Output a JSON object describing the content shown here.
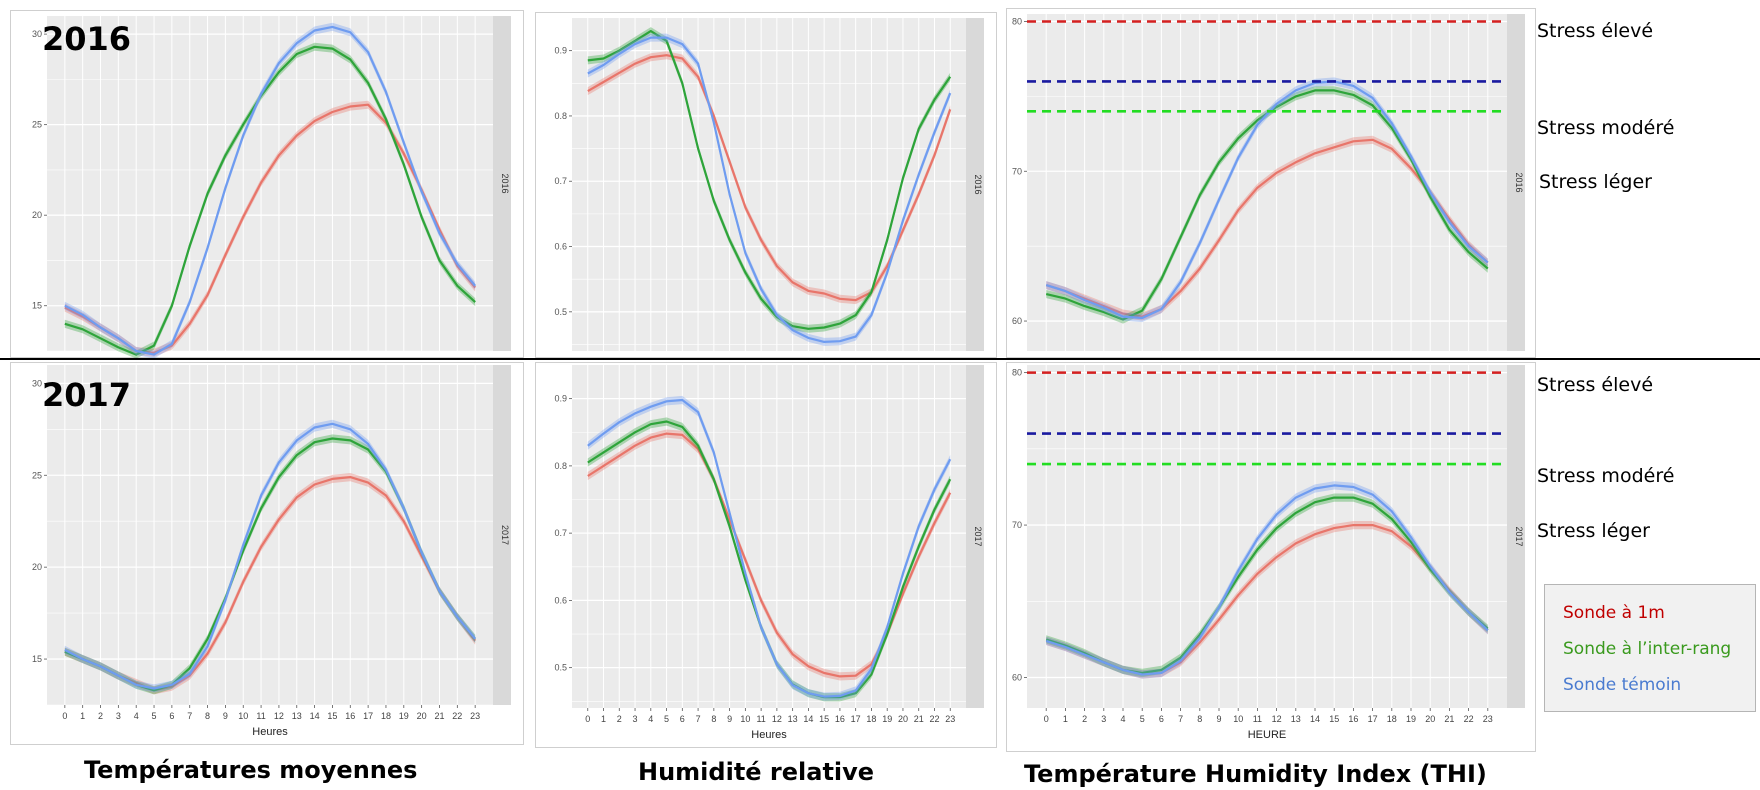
{
  "labels": {
    "year_2016": "2016",
    "year_2017": "2017",
    "col1_title": "Températures moyennes",
    "col2_title": "Humidité relative",
    "col3_title": "Température Humidity Index (THI)",
    "stress_high": "Stress élevé",
    "stress_moderate": "Stress modéré",
    "stress_light": "Stress léger"
  },
  "legend": [
    {
      "label": "Sonde à 1m",
      "color": "#c00000"
    },
    {
      "label": "Sonde à l’inter-rang",
      "color": "#3a9a1e"
    },
    {
      "label": "Sonde témoin",
      "color": "#4a7bd0"
    }
  ],
  "colors": {
    "panel_bg": "#ebebeb",
    "grid": "#ffffff",
    "strip": "#d9d9d9",
    "series_red": "#e8756a",
    "series_green": "#2ea43a",
    "series_blue": "#6f9cf0",
    "stress_high": "#d42020",
    "stress_moderate": "#1a1aa0",
    "stress_light": "#22dd22"
  },
  "chart_data": [
    {
      "type": "line",
      "year": "2016",
      "strip": "2016",
      "xlabel": "",
      "x": [
        0,
        1,
        2,
        3,
        4,
        5,
        6,
        7,
        8,
        9,
        10,
        11,
        12,
        13,
        14,
        15,
        16,
        17,
        18,
        19,
        20,
        21,
        22,
        23
      ],
      "xlim": [
        0,
        23
      ],
      "ylim": [
        12.5,
        31
      ],
      "yticks": [
        15,
        20,
        25,
        30
      ],
      "ytick_labels": [
        "15",
        "20",
        "25",
        "30"
      ],
      "show_x_ticks": false,
      "series": [
        {
          "color": "#e8756a",
          "values": [
            14.9,
            14.4,
            13.8,
            13.2,
            12.5,
            12.4,
            12.8,
            14.0,
            15.6,
            17.8,
            19.9,
            21.8,
            23.3,
            24.4,
            25.2,
            25.7,
            26.0,
            26.1,
            25.1,
            23.4,
            21.4,
            19.2,
            17.2,
            16.0
          ]
        },
        {
          "color": "#2ea43a",
          "values": [
            14.0,
            13.7,
            13.2,
            12.7,
            12.3,
            12.8,
            15.0,
            18.3,
            21.2,
            23.3,
            25.0,
            26.6,
            27.9,
            28.9,
            29.3,
            29.2,
            28.6,
            27.3,
            25.3,
            22.8,
            19.9,
            17.5,
            16.1,
            15.2
          ]
        },
        {
          "color": "#6f9cf0",
          "values": [
            15.0,
            14.5,
            13.8,
            13.2,
            12.5,
            12.3,
            12.9,
            15.2,
            18.2,
            21.5,
            24.4,
            26.7,
            28.4,
            29.5,
            30.2,
            30.4,
            30.1,
            29.0,
            26.8,
            24.0,
            21.3,
            19.0,
            17.3,
            16.1
          ]
        }
      ]
    },
    {
      "type": "line",
      "year": "2016",
      "strip": "2016",
      "xlabel": "",
      "x": [
        0,
        1,
        2,
        3,
        4,
        5,
        6,
        7,
        8,
        9,
        10,
        11,
        12,
        13,
        14,
        15,
        16,
        17,
        18,
        19,
        20,
        21,
        22,
        23
      ],
      "xlim": [
        0,
        23
      ],
      "ylim": [
        0.44,
        0.95
      ],
      "yticks": [
        0.5,
        0.6,
        0.7,
        0.8,
        0.9
      ],
      "ytick_labels": [
        "0.5",
        "0.6",
        "0.7",
        "0.8",
        "0.9"
      ],
      "show_x_ticks": false,
      "series": [
        {
          "color": "#e8756a",
          "values": [
            0.838,
            0.852,
            0.866,
            0.88,
            0.89,
            0.893,
            0.888,
            0.86,
            0.8,
            0.73,
            0.66,
            0.61,
            0.57,
            0.545,
            0.532,
            0.528,
            0.52,
            0.518,
            0.53,
            0.57,
            0.625,
            0.68,
            0.74,
            0.81
          ]
        },
        {
          "color": "#2ea43a",
          "values": [
            0.885,
            0.888,
            0.9,
            0.915,
            0.93,
            0.915,
            0.85,
            0.75,
            0.67,
            0.61,
            0.56,
            0.52,
            0.492,
            0.478,
            0.474,
            0.476,
            0.482,
            0.495,
            0.53,
            0.61,
            0.705,
            0.78,
            0.825,
            0.86
          ]
        },
        {
          "color": "#6f9cf0",
          "values": [
            0.865,
            0.878,
            0.895,
            0.91,
            0.92,
            0.92,
            0.91,
            0.88,
            0.79,
            0.68,
            0.59,
            0.535,
            0.495,
            0.472,
            0.46,
            0.454,
            0.455,
            0.462,
            0.495,
            0.56,
            0.64,
            0.71,
            0.775,
            0.835
          ]
        }
      ]
    },
    {
      "type": "line",
      "year": "2016",
      "strip": "2016",
      "xlabel": "",
      "x": [
        0,
        1,
        2,
        3,
        4,
        5,
        6,
        7,
        8,
        9,
        10,
        11,
        12,
        13,
        14,
        15,
        16,
        17,
        18,
        19,
        20,
        21,
        22,
        23
      ],
      "xlim": [
        0,
        23
      ],
      "ylim": [
        58,
        80.5
      ],
      "yticks": [
        60,
        70,
        80
      ],
      "ytick_labels": [
        "60",
        "70",
        "80"
      ],
      "show_x_ticks": false,
      "hlines": [
        {
          "y": 80.0,
          "color": "#d42020",
          "label_key": "stress_high"
        },
        {
          "y": 76.0,
          "color": "#1a1aa0",
          "label_key": "stress_moderate"
        },
        {
          "y": 74.0,
          "color": "#22dd22",
          "label_key": "stress_light"
        }
      ],
      "series": [
        {
          "color": "#e8756a",
          "values": [
            62.4,
            62.0,
            61.5,
            61.0,
            60.5,
            60.3,
            60.8,
            62.0,
            63.5,
            65.4,
            67.4,
            68.9,
            69.9,
            70.6,
            71.2,
            71.6,
            72.0,
            72.1,
            71.5,
            70.2,
            68.6,
            66.8,
            65.1,
            63.9
          ]
        },
        {
          "color": "#2ea43a",
          "values": [
            61.8,
            61.5,
            61.0,
            60.6,
            60.1,
            60.7,
            62.8,
            65.6,
            68.4,
            70.6,
            72.2,
            73.4,
            74.3,
            75.0,
            75.4,
            75.4,
            75.1,
            74.4,
            72.9,
            70.8,
            68.3,
            66.1,
            64.6,
            63.5
          ]
        },
        {
          "color": "#6f9cf0",
          "values": [
            62.4,
            62.0,
            61.4,
            60.9,
            60.3,
            60.2,
            60.8,
            62.6,
            65.2,
            68.1,
            70.9,
            73.1,
            74.5,
            75.4,
            75.9,
            76.0,
            75.7,
            74.9,
            73.2,
            71.0,
            68.6,
            66.6,
            65.0,
            63.9
          ]
        }
      ]
    },
    {
      "type": "line",
      "year": "2017",
      "strip": "2017",
      "xlabel": "Heures",
      "x": [
        0,
        1,
        2,
        3,
        4,
        5,
        6,
        7,
        8,
        9,
        10,
        11,
        12,
        13,
        14,
        15,
        16,
        17,
        18,
        19,
        20,
        21,
        22,
        23
      ],
      "xlim": [
        0,
        23
      ],
      "ylim": [
        12.5,
        31
      ],
      "yticks": [
        15,
        20,
        25,
        30
      ],
      "ytick_labels": [
        "15",
        "20",
        "25",
        "30"
      ],
      "show_x_ticks": true,
      "series": [
        {
          "color": "#e8756a",
          "values": [
            15.4,
            15.0,
            14.6,
            14.1,
            13.7,
            13.3,
            13.5,
            14.1,
            15.3,
            17.0,
            19.2,
            21.1,
            22.6,
            23.8,
            24.5,
            24.8,
            24.9,
            24.6,
            23.9,
            22.5,
            20.6,
            18.7,
            17.3,
            16.0
          ]
        },
        {
          "color": "#2ea43a",
          "values": [
            15.4,
            15.0,
            14.6,
            14.1,
            13.6,
            13.3,
            13.6,
            14.5,
            16.1,
            18.3,
            20.9,
            23.2,
            24.9,
            26.1,
            26.8,
            27.0,
            26.9,
            26.4,
            25.2,
            23.2,
            20.8,
            18.7,
            17.3,
            16.1
          ]
        },
        {
          "color": "#6f9cf0",
          "values": [
            15.5,
            15.0,
            14.6,
            14.1,
            13.6,
            13.4,
            13.6,
            14.2,
            15.7,
            18.2,
            21.2,
            23.9,
            25.7,
            26.9,
            27.6,
            27.8,
            27.5,
            26.7,
            25.3,
            23.2,
            20.8,
            18.7,
            17.3,
            16.1
          ]
        }
      ]
    },
    {
      "type": "line",
      "year": "2017",
      "strip": "2017",
      "xlabel": "Heures",
      "x": [
        0,
        1,
        2,
        3,
        4,
        5,
        6,
        7,
        8,
        9,
        10,
        11,
        12,
        13,
        14,
        15,
        16,
        17,
        18,
        19,
        20,
        21,
        22,
        23
      ],
      "xlim": [
        0,
        23
      ],
      "ylim": [
        0.44,
        0.95
      ],
      "yticks": [
        0.5,
        0.6,
        0.7,
        0.8,
        0.9
      ],
      "ytick_labels": [
        "0.5",
        "0.6",
        "0.7",
        "0.8",
        "0.9"
      ],
      "show_x_ticks": true,
      "series": [
        {
          "color": "#e8756a",
          "values": [
            0.785,
            0.8,
            0.815,
            0.83,
            0.842,
            0.848,
            0.846,
            0.825,
            0.78,
            0.72,
            0.66,
            0.6,
            0.552,
            0.52,
            0.502,
            0.492,
            0.487,
            0.488,
            0.505,
            0.55,
            0.61,
            0.665,
            0.715,
            0.76
          ]
        },
        {
          "color": "#2ea43a",
          "values": [
            0.805,
            0.82,
            0.835,
            0.85,
            0.862,
            0.866,
            0.858,
            0.83,
            0.78,
            0.71,
            0.63,
            0.56,
            0.505,
            0.475,
            0.462,
            0.456,
            0.456,
            0.462,
            0.49,
            0.55,
            0.62,
            0.68,
            0.735,
            0.78
          ]
        },
        {
          "color": "#6f9cf0",
          "values": [
            0.83,
            0.848,
            0.865,
            0.878,
            0.888,
            0.896,
            0.898,
            0.88,
            0.82,
            0.73,
            0.64,
            0.56,
            0.505,
            0.474,
            0.462,
            0.457,
            0.458,
            0.466,
            0.498,
            0.56,
            0.64,
            0.71,
            0.765,
            0.81
          ]
        }
      ]
    },
    {
      "type": "line",
      "year": "2017",
      "strip": "2017",
      "xlabel": "HEURE",
      "x": [
        0,
        1,
        2,
        3,
        4,
        5,
        6,
        7,
        8,
        9,
        10,
        11,
        12,
        13,
        14,
        15,
        16,
        17,
        18,
        19,
        20,
        21,
        22,
        23
      ],
      "xlim": [
        0,
        23
      ],
      "ylim": [
        58,
        80.5
      ],
      "yticks": [
        60,
        70,
        80
      ],
      "ytick_labels": [
        "60",
        "70",
        "80"
      ],
      "show_x_ticks": true,
      "hlines": [
        {
          "y": 80.0,
          "color": "#d42020",
          "label_key": "stress_high"
        },
        {
          "y": 76.0,
          "color": "#1a1aa0",
          "label_key": "stress_moderate"
        },
        {
          "y": 74.0,
          "color": "#22dd22",
          "label_key": "stress_light"
        }
      ],
      "series": [
        {
          "color": "#e8756a",
          "values": [
            62.4,
            62.0,
            61.5,
            61.0,
            60.5,
            60.2,
            60.3,
            61.0,
            62.3,
            63.8,
            65.4,
            66.8,
            67.9,
            68.8,
            69.4,
            69.8,
            70.0,
            70.0,
            69.6,
            68.6,
            67.2,
            65.7,
            64.3,
            63.1
          ]
        },
        {
          "color": "#2ea43a",
          "values": [
            62.5,
            62.1,
            61.6,
            61.0,
            60.5,
            60.3,
            60.5,
            61.3,
            62.8,
            64.6,
            66.6,
            68.4,
            69.8,
            70.8,
            71.5,
            71.8,
            71.8,
            71.4,
            70.4,
            68.9,
            67.1,
            65.6,
            64.3,
            63.2
          ]
        },
        {
          "color": "#6f9cf0",
          "values": [
            62.4,
            62.0,
            61.5,
            61.0,
            60.5,
            60.2,
            60.3,
            61.1,
            62.6,
            64.6,
            67.0,
            69.1,
            70.7,
            71.8,
            72.4,
            72.6,
            72.5,
            72.0,
            70.9,
            69.2,
            67.3,
            65.6,
            64.3,
            63.1
          ]
        }
      ]
    }
  ]
}
